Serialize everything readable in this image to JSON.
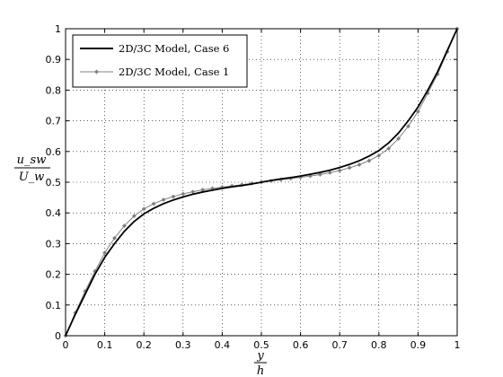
{
  "chart_data": {
    "type": "line",
    "title": "",
    "xlabel": {
      "numerator": "y",
      "denominator": "h"
    },
    "ylabel": {
      "numerator": "u_sw",
      "denominator": "U_w"
    },
    "xlim": [
      0,
      1
    ],
    "ylim": [
      0,
      1
    ],
    "xticks": [
      "0",
      "0.1",
      "0.2",
      "0.3",
      "0.4",
      "0.5",
      "0.6",
      "0.7",
      "0.8",
      "0.9",
      "1"
    ],
    "yticks": [
      "0",
      "0.1",
      "0.2",
      "0.3",
      "0.4",
      "0.5",
      "0.6",
      "0.7",
      "0.8",
      "0.9",
      "1"
    ],
    "grid": true,
    "legend_position": "top-left",
    "series": [
      {
        "name": "2D/3C Model, Case 6",
        "color": "#000000",
        "marker": "none",
        "x": [
          0,
          0.025,
          0.05,
          0.075,
          0.1,
          0.125,
          0.15,
          0.175,
          0.2,
          0.225,
          0.25,
          0.275,
          0.3,
          0.325,
          0.35,
          0.375,
          0.4,
          0.425,
          0.45,
          0.475,
          0.5,
          0.525,
          0.55,
          0.575,
          0.6,
          0.625,
          0.65,
          0.675,
          0.7,
          0.725,
          0.75,
          0.775,
          0.8,
          0.825,
          0.85,
          0.875,
          0.9,
          0.925,
          0.95,
          0.975,
          1
        ],
        "y": [
          0,
          0.07,
          0.135,
          0.2,
          0.255,
          0.3,
          0.34,
          0.372,
          0.397,
          0.415,
          0.43,
          0.442,
          0.452,
          0.461,
          0.468,
          0.474,
          0.48,
          0.485,
          0.489,
          0.494,
          0.5,
          0.506,
          0.511,
          0.515,
          0.52,
          0.526,
          0.532,
          0.539,
          0.548,
          0.558,
          0.57,
          0.585,
          0.603,
          0.628,
          0.66,
          0.7,
          0.745,
          0.8,
          0.86,
          0.93,
          1
        ]
      },
      {
        "name": "2D/3C Model, Case 1",
        "color": "#808080",
        "marker": "diamond",
        "x": [
          0,
          0.025,
          0.05,
          0.075,
          0.1,
          0.125,
          0.15,
          0.175,
          0.2,
          0.225,
          0.25,
          0.275,
          0.3,
          0.325,
          0.35,
          0.375,
          0.4,
          0.425,
          0.45,
          0.475,
          0.5,
          0.525,
          0.55,
          0.575,
          0.6,
          0.625,
          0.65,
          0.675,
          0.7,
          0.725,
          0.75,
          0.775,
          0.8,
          0.825,
          0.85,
          0.875,
          0.9,
          0.925,
          0.95,
          0.975,
          1
        ],
        "y": [
          0,
          0.075,
          0.145,
          0.21,
          0.27,
          0.318,
          0.358,
          0.39,
          0.413,
          0.43,
          0.443,
          0.453,
          0.462,
          0.469,
          0.475,
          0.48,
          0.484,
          0.488,
          0.492,
          0.496,
          0.5,
          0.504,
          0.508,
          0.512,
          0.516,
          0.52,
          0.525,
          0.531,
          0.538,
          0.547,
          0.557,
          0.57,
          0.587,
          0.61,
          0.642,
          0.682,
          0.73,
          0.79,
          0.852,
          0.925,
          1
        ]
      }
    ]
  }
}
